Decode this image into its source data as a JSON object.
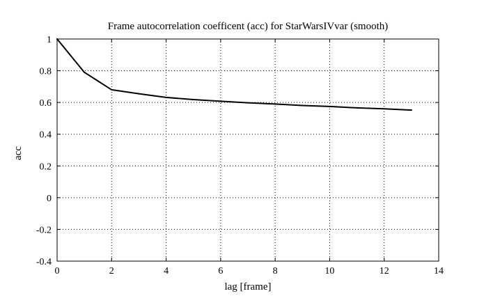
{
  "chart_data": {
    "type": "line",
    "title": "Frame autocorrelation coefficent (acc) for StarWarsIVvar (smooth)",
    "xlabel": "lag [frame]",
    "ylabel": "acc",
    "xlim": [
      0,
      14
    ],
    "ylim": [
      -0.4,
      1
    ],
    "xticks": [
      0,
      2,
      4,
      6,
      8,
      10,
      12,
      14
    ],
    "xtick_labels": [
      "0",
      "2",
      "4",
      "6",
      "8",
      "10",
      "12",
      "14"
    ],
    "yticks": [
      -0.4,
      -0.2,
      0,
      0.2,
      0.4,
      0.6,
      0.8,
      1
    ],
    "ytick_labels": [
      "-0.4",
      "-0.2",
      "0",
      "0.2",
      "0.4",
      "0.6",
      "0.8",
      "1"
    ],
    "grid": true,
    "series": [
      {
        "color": "#000000",
        "x": [
          0,
          1,
          2,
          3,
          4,
          5,
          6,
          7,
          8,
          9,
          10,
          11,
          12,
          13
        ],
        "values": [
          1.0,
          0.79,
          0.68,
          0.655,
          0.632,
          0.618,
          0.608,
          0.598,
          0.59,
          0.581,
          0.575,
          0.566,
          0.56,
          0.552
        ]
      }
    ]
  }
}
